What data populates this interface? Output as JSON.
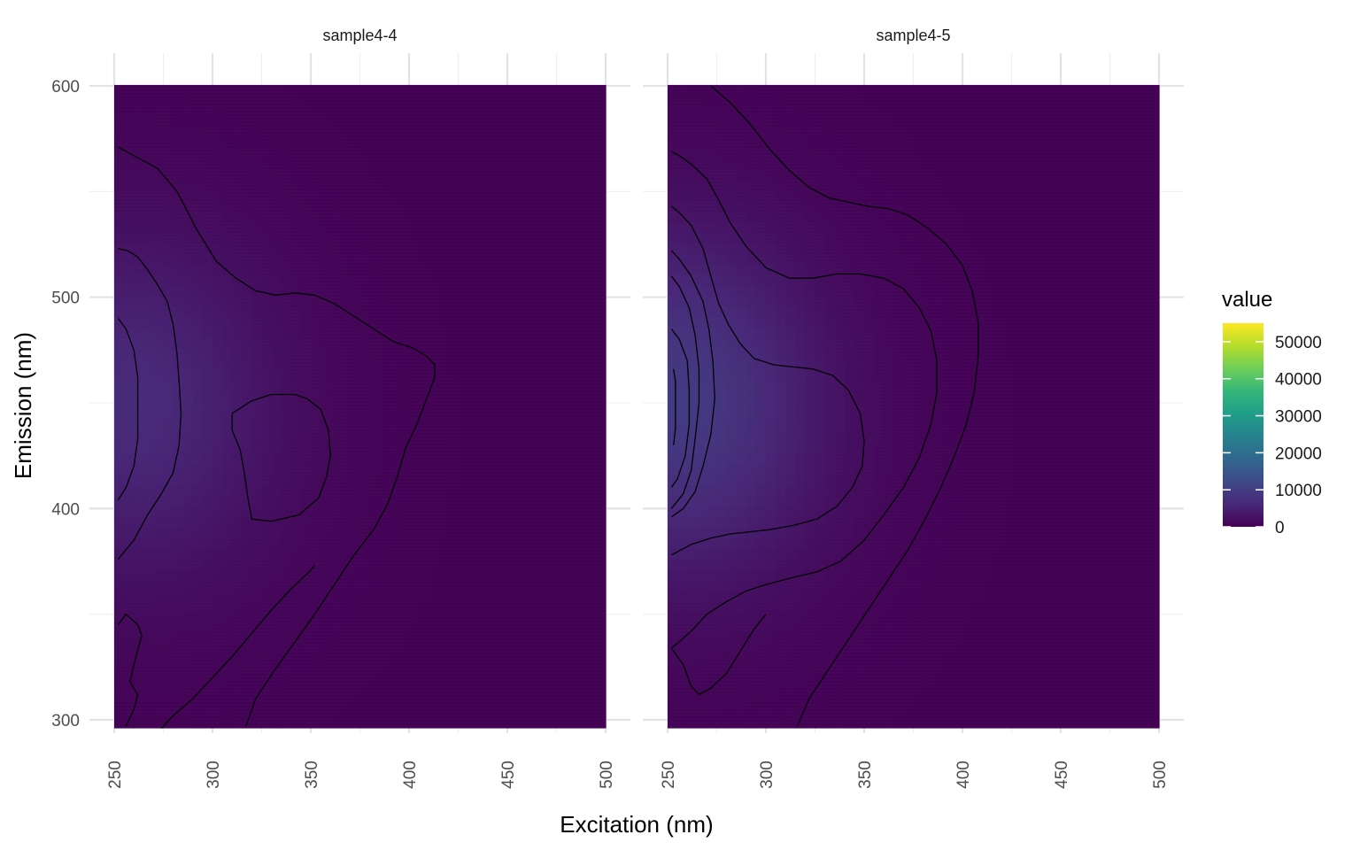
{
  "chart_data": {
    "type": "heatmap",
    "xlabel": "Excitation (nm)",
    "ylabel": "Emission (nm)",
    "xlim": [
      250,
      500
    ],
    "ylim": [
      295,
      600
    ],
    "x_ticks": [
      250,
      300,
      350,
      400,
      450,
      500
    ],
    "y_ticks": [
      300,
      400,
      500,
      600
    ],
    "grid": true,
    "legend": {
      "title": "value",
      "placement": "right",
      "ticks": [
        0,
        10000,
        20000,
        30000,
        40000,
        50000
      ],
      "tick_labels": [
        "0",
        "10000",
        "20000",
        "30000",
        "40000",
        "50000"
      ],
      "range": [
        0,
        55000
      ],
      "colors": [
        "#440154",
        "#482878",
        "#3e4a89",
        "#31688e",
        "#26828e",
        "#1f9e89",
        "#35b779",
        "#6ece58",
        "#b5de2b",
        "#fde725"
      ]
    },
    "facets": [
      {
        "name": "sample4-4",
        "peak": {
          "ex": 255,
          "em": 450,
          "value": 6000
        },
        "contours": [
          [
            [
              252,
              571
            ],
            [
              256,
              569
            ],
            [
              262,
              566
            ],
            [
              272,
              561
            ],
            [
              282,
              550
            ],
            [
              292,
              532
            ],
            [
              302,
              517
            ],
            [
              312,
              509
            ],
            [
              322,
              503
            ],
            [
              332,
              501
            ],
            [
              342,
              502
            ],
            [
              352,
              501
            ],
            [
              362,
              497
            ],
            [
              372,
              491
            ],
            [
              382,
              485
            ],
            [
              392,
              479
            ],
            [
              402,
              476
            ],
            [
              409,
              472
            ],
            [
              413,
              468
            ],
            [
              413,
              462
            ],
            [
              409,
              452
            ],
            [
              404,
              440
            ],
            [
              398,
              428
            ],
            [
              394,
              415
            ],
            [
              389,
              402
            ],
            [
              382,
              390
            ],
            [
              372,
              378
            ],
            [
              362,
              364
            ],
            [
              352,
              350
            ],
            [
              342,
              337
            ],
            [
              332,
              324
            ],
            [
              322,
              310
            ],
            [
              317,
              297
            ]
          ],
          [
            [
              252,
              523
            ],
            [
              257,
              522
            ],
            [
              262,
              519
            ],
            [
              267,
              513
            ],
            [
              272,
              506
            ],
            [
              277,
              498
            ],
            [
              280,
              487
            ],
            [
              282,
              473
            ],
            [
              283,
              460
            ],
            [
              284,
              445
            ],
            [
              283,
              430
            ],
            [
              280,
              417
            ],
            [
              274,
              407
            ],
            [
              267,
              397
            ],
            [
              260,
              385
            ],
            [
              252,
              376
            ]
          ],
          [
            [
              252,
              490
            ],
            [
              256,
              485
            ],
            [
              260,
              475
            ],
            [
              262,
              462
            ],
            [
              262,
              448
            ],
            [
              262,
              433
            ],
            [
              260,
              420
            ],
            [
              256,
              410
            ],
            [
              252,
              404
            ]
          ],
          [
            [
              310,
              445
            ],
            [
              320,
              451
            ],
            [
              330,
              454
            ],
            [
              342,
              454
            ],
            [
              348,
              452
            ],
            [
              355,
              447
            ],
            [
              359,
              437
            ],
            [
              360,
              425
            ],
            [
              358,
              415
            ],
            [
              354,
              405
            ],
            [
              344,
              397
            ],
            [
              330,
              394
            ],
            [
              320,
              395
            ],
            [
              318,
              405
            ],
            [
              316,
              418
            ],
            [
              314,
              428
            ],
            [
              310,
              437
            ],
            [
              310,
              445
            ]
          ],
          [
            [
              352,
              373
            ],
            [
              348,
              369
            ],
            [
              340,
              362
            ],
            [
              330,
              352
            ],
            [
              320,
              341
            ],
            [
              310,
              330
            ],
            [
              300,
              320
            ],
            [
              290,
              310
            ],
            [
              280,
              302
            ],
            [
              274,
              296
            ]
          ],
          [
            [
              252,
              345
            ],
            [
              256,
              350
            ],
            [
              262,
              345
            ],
            [
              264,
              340
            ],
            [
              262,
              333
            ],
            [
              260,
              326
            ],
            [
              258,
              318
            ],
            [
              262,
              312
            ],
            [
              260,
              305
            ],
            [
              256,
              297
            ]
          ]
        ]
      },
      {
        "name": "sample4-5",
        "peak": {
          "ex": 252,
          "em": 450,
          "value": 9000
        },
        "contours": [
          [
            [
              272,
              600
            ],
            [
              282,
              592
            ],
            [
              292,
              582
            ],
            [
              302,
              570
            ],
            [
              312,
              560
            ],
            [
              322,
              552
            ],
            [
              332,
              547
            ],
            [
              342,
              545
            ],
            [
              352,
              543
            ],
            [
              362,
              542
            ],
            [
              372,
              539
            ],
            [
              382,
              533
            ],
            [
              392,
              525
            ],
            [
              400,
              515
            ],
            [
              405,
              503
            ],
            [
              408,
              488
            ],
            [
              408,
              472
            ],
            [
              406,
              455
            ],
            [
              402,
              440
            ],
            [
              396,
              425
            ],
            [
              389,
              410
            ],
            [
              381,
              395
            ],
            [
              372,
              380
            ],
            [
              362,
              366
            ],
            [
              352,
              352
            ],
            [
              342,
              338
            ],
            [
              332,
              324
            ],
            [
              322,
              310
            ],
            [
              316,
              297
            ]
          ],
          [
            [
              252,
              569
            ],
            [
              256,
              567
            ],
            [
              262,
              563
            ],
            [
              270,
              556
            ],
            [
              276,
              546
            ],
            [
              282,
              535
            ],
            [
              290,
              524
            ],
            [
              300,
              514
            ],
            [
              312,
              509
            ],
            [
              324,
              509
            ],
            [
              336,
              511
            ],
            [
              348,
              511
            ],
            [
              360,
              509
            ],
            [
              370,
              504
            ],
            [
              378,
              495
            ],
            [
              384,
              484
            ],
            [
              387,
              470
            ],
            [
              387,
              455
            ],
            [
              384,
              440
            ],
            [
              378,
              424
            ],
            [
              370,
              410
            ],
            [
              360,
              397
            ],
            [
              350,
              385
            ],
            [
              338,
              375
            ],
            [
              326,
              370
            ],
            [
              312,
              367
            ],
            [
              300,
              364
            ],
            [
              290,
              361
            ],
            [
              280,
              356
            ],
            [
              270,
              350
            ],
            [
              262,
              342
            ],
            [
              256,
              337
            ],
            [
              252,
              334
            ]
          ],
          [
            [
              252,
              543
            ],
            [
              256,
              540
            ],
            [
              262,
              534
            ],
            [
              268,
              523
            ],
            [
              272,
              510
            ],
            [
              276,
              497
            ],
            [
              281,
              487
            ],
            [
              287,
              478
            ],
            [
              294,
              471
            ],
            [
              304,
              468
            ],
            [
              314,
              467
            ],
            [
              324,
              466
            ],
            [
              334,
              463
            ],
            [
              342,
              456
            ],
            [
              348,
              445
            ],
            [
              350,
              432
            ],
            [
              349,
              420
            ],
            [
              344,
              410
            ],
            [
              336,
              401
            ],
            [
              326,
              395
            ],
            [
              314,
              392
            ],
            [
              302,
              390
            ],
            [
              292,
              389
            ],
            [
              282,
              388
            ],
            [
              272,
              386
            ],
            [
              262,
              383
            ],
            [
              252,
              378
            ]
          ],
          [
            [
              252,
              522
            ],
            [
              256,
              518
            ],
            [
              262,
              510
            ],
            [
              268,
              498
            ],
            [
              271,
              485
            ],
            [
              273,
              470
            ],
            [
              274,
              452
            ],
            [
              272,
              435
            ],
            [
              268,
              420
            ],
            [
              264,
              408
            ],
            [
              258,
              400
            ],
            [
              252,
              396
            ]
          ],
          [
            [
              252,
              510
            ],
            [
              256,
              505
            ],
            [
              261,
              495
            ],
            [
              264,
              482
            ],
            [
              266,
              466
            ],
            [
              266,
              450
            ],
            [
              264,
              433
            ],
            [
              262,
              418
            ],
            [
              258,
              407
            ],
            [
              252,
              400
            ]
          ],
          [
            [
              252,
              485
            ],
            [
              256,
              480
            ],
            [
              260,
              470
            ],
            [
              261,
              456
            ],
            [
              261,
              440
            ],
            [
              259,
              425
            ],
            [
              255,
              414
            ],
            [
              252,
              410
            ]
          ],
          [
            [
              253,
              466
            ],
            [
              254,
              460
            ],
            [
              254,
              450
            ],
            [
              254,
              438
            ],
            [
              253,
              430
            ]
          ],
          [
            [
              252,
              334
            ],
            [
              258,
              326
            ],
            [
              262,
              316
            ],
            [
              266,
              312
            ],
            [
              272,
              315
            ],
            [
              280,
              322
            ],
            [
              290,
              337
            ],
            [
              294,
              343
            ],
            [
              300,
              350
            ]
          ]
        ]
      }
    ]
  }
}
